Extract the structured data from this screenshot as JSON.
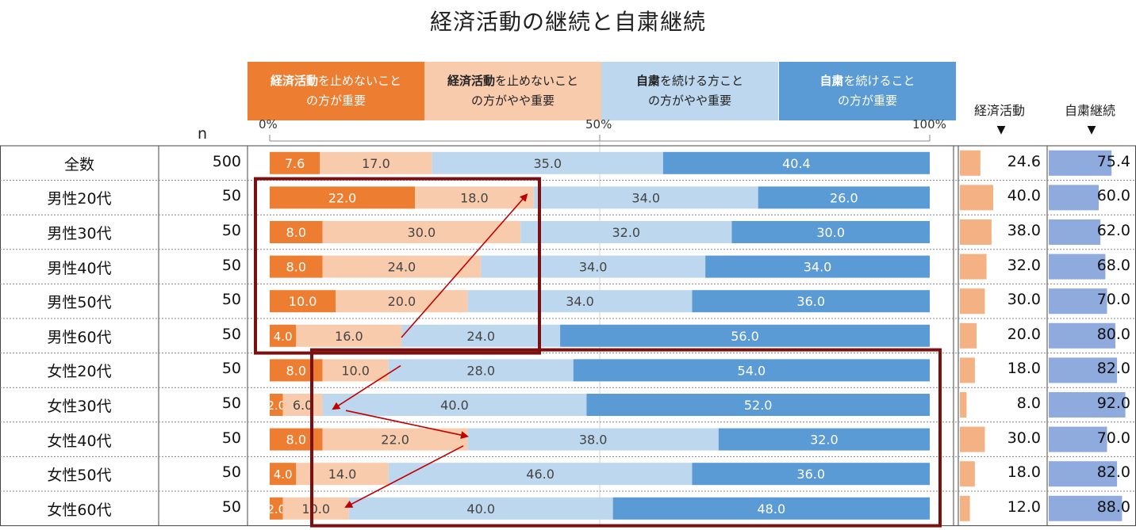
{
  "title": "経済活動の継続と自粛継続",
  "n_header": "n",
  "legend": [
    {
      "bold": "経済活動",
      "rest": "を止めないこと",
      "line2": "の方が重要",
      "color": "#ED7D31",
      "text_color": "#ffffff"
    },
    {
      "bold": "経済活動",
      "rest": "を止めないこと",
      "line2": "の方がやや重要",
      "color": "#F8CBAD",
      "text_color": "#222222"
    },
    {
      "bold": "自粛",
      "rest": "を続ける方こと",
      "line2": "の方がやや重要",
      "color": "#BDD7EE",
      "text_color": "#222222"
    },
    {
      "bold": "自粛",
      "rest": "を続けること",
      "line2": "の方が重要",
      "color": "#5B9BD5",
      "text_color": "#ffffff"
    }
  ],
  "side_headers": {
    "economy": "経済活動",
    "restraint": "自粛継続",
    "marker": "▼"
  },
  "chart_data": {
    "type": "bar",
    "stacked": true,
    "orientation": "horizontal",
    "xlim": [
      0,
      100
    ],
    "tick_labels": [
      "0%",
      "50%",
      "100%"
    ],
    "categories": [
      "全数",
      "男性20代",
      "男性30代",
      "男性40代",
      "男性50代",
      "男性60代",
      "女性20代",
      "女性30代",
      "女性40代",
      "女性50代",
      "女性60代"
    ],
    "n": [
      "500",
      "50",
      "50",
      "50",
      "50",
      "50",
      "50",
      "50",
      "50",
      "50",
      "50"
    ],
    "series": [
      {
        "name": "経済活動を止めないことの方が重要",
        "values": [
          "7.6",
          "22.0",
          "8.0",
          "8.0",
          "10.0",
          "4.0",
          "8.0",
          "2.0",
          "8.0",
          "4.0",
          "2.0"
        ]
      },
      {
        "name": "経済活動を止めないことの方がやや重要",
        "values": [
          "17.0",
          "18.0",
          "30.0",
          "24.0",
          "20.0",
          "16.0",
          "10.0",
          "6.0",
          "22.0",
          "14.0",
          "10.0"
        ]
      },
      {
        "name": "自粛を続ける方ことの方がやや重要",
        "values": [
          "35.0",
          "34.0",
          "32.0",
          "34.0",
          "34.0",
          "24.0",
          "28.0",
          "40.0",
          "38.0",
          "46.0",
          "40.0"
        ]
      },
      {
        "name": "自粛を続けることの方が重要",
        "values": [
          "40.4",
          "26.0",
          "30.0",
          "34.0",
          "36.0",
          "56.0",
          "54.0",
          "52.0",
          "32.0",
          "36.0",
          "48.0"
        ]
      }
    ],
    "economy_total": [
      "24.6",
      "40.0",
      "38.0",
      "32.0",
      "30.0",
      "20.0",
      "18.0",
      "8.0",
      "30.0",
      "18.0",
      "12.0"
    ],
    "restraint_total": [
      "75.4",
      "60.0",
      "62.0",
      "68.0",
      "70.0",
      "80.0",
      "82.0",
      "92.0",
      "70.0",
      "82.0",
      "88.0"
    ],
    "colors": {
      "s1": "#ED7D31",
      "s2": "#F8CBAD",
      "s3": "#BDD7EE",
      "s4": "#5B9BD5",
      "economy_bar": "#F4B183",
      "restraint_bar": "#8FAADC",
      "highlight_box": "#7B1010",
      "arrow": "#C00000"
    },
    "highlight_groups": [
      {
        "rows": [
          "男性20代",
          "男性60代"
        ]
      },
      {
        "rows": [
          "女性20代",
          "女性60代"
        ]
      }
    ]
  }
}
